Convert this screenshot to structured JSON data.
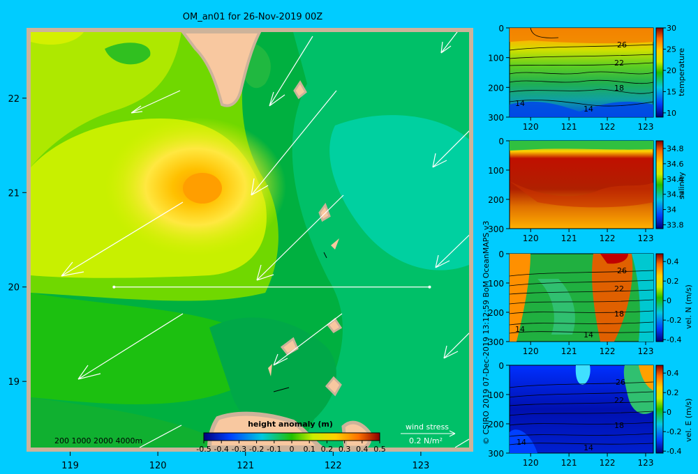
{
  "chart_data": [
    {
      "type": "heatmap",
      "title": "OM_an01 for 26-Nov-2019 00Z",
      "xlim": [
        118.55,
        123.55
      ],
      "ylim": [
        18.3,
        22.7
      ],
      "xticks": [
        119,
        120,
        121,
        122,
        123
      ],
      "yticks": [
        19,
        20,
        21,
        22
      ],
      "colorbar": {
        "label": "height anomaly  (m)",
        "min": -0.5,
        "max": 0.5,
        "ticks": [
          "-0.5",
          "-0.4",
          "-0.3",
          "-0.2",
          "-0.1",
          "0",
          "0.1",
          "0.2",
          "0.3",
          "0.4",
          "0.5"
        ]
      },
      "depth_legend": "200   1000   2000   4000m",
      "wind_legend": {
        "title": "wind stress",
        "value": "0.2 N/m²"
      },
      "section_line": {
        "lat": 20,
        "lon": [
          119.5,
          123.1
        ]
      },
      "anomaly_field": [
        {
          "lon": 120.4,
          "lat": 21.0,
          "value": 0.35
        },
        {
          "lon": 120.2,
          "lat": 21.2,
          "value": 0.2
        },
        {
          "lon": 119.6,
          "lat": 21.3,
          "value": 0.1
        },
        {
          "lon": 119.0,
          "lat": 20.2,
          "value": 0.05
        },
        {
          "lon": 119.3,
          "lat": 22.5,
          "value": 0.05
        },
        {
          "lon": 119.6,
          "lat": 19.3,
          "value": -0.05
        },
        {
          "lon": 122.5,
          "lat": 21.5,
          "value": -0.15
        },
        {
          "lon": 123.2,
          "lat": 21.0,
          "value": -0.15
        },
        {
          "lon": 123.2,
          "lat": 20.2,
          "value": -0.15
        },
        {
          "lon": 121.8,
          "lat": 19.2,
          "value": -0.1
        }
      ]
    },
    {
      "type": "heatmap",
      "variable": "temperature",
      "xticks": [
        120,
        121,
        122,
        123
      ],
      "yticks": [
        0,
        100,
        200,
        300
      ],
      "colorbar": {
        "label": "temperature",
        "min": 9,
        "max": 30,
        "ticks": [
          "30",
          "25",
          "20",
          "15",
          "10"
        ]
      },
      "contour_labels": [
        "26",
        "22",
        "18",
        "14",
        "14"
      ]
    },
    {
      "type": "heatmap",
      "variable": "salinity",
      "xticks": [
        120,
        121,
        122,
        123
      ],
      "yticks": [
        0,
        100,
        200,
        300
      ],
      "colorbar": {
        "label": "salinity",
        "min": 33.75,
        "max": 34.9,
        "ticks": [
          "34.8",
          "34.6",
          "34.4",
          "34.2",
          "34",
          "33.8"
        ]
      }
    },
    {
      "type": "heatmap",
      "variable": "vel. N",
      "xticks": [
        120,
        121,
        122,
        123
      ],
      "yticks": [
        0,
        100,
        200,
        300
      ],
      "colorbar": {
        "label": "vel. N  (m/s)",
        "min": -0.42,
        "max": 0.48,
        "ticks": [
          "0.4",
          "0.2",
          "0",
          "-0.2",
          "-0.4"
        ]
      },
      "contour_labels": [
        "26",
        "22",
        "18",
        "14",
        "14"
      ]
    },
    {
      "type": "heatmap",
      "variable": "vel. E",
      "xticks": [
        120,
        121,
        122,
        123
      ],
      "yticks": [
        0,
        100,
        200,
        300
      ],
      "colorbar": {
        "label": "vel. E  (m/s)",
        "min": -0.42,
        "max": 0.48,
        "ticks": [
          "0.4",
          "0.2",
          "0",
          "-0.2",
          "-0.4"
        ]
      },
      "contour_labels": [
        "26",
        "22",
        "18",
        "14",
        "14"
      ]
    }
  ],
  "credit": "© CSIRO 2019   07-Dec-2019 13:12:59 BoM OceanMAPS v3"
}
